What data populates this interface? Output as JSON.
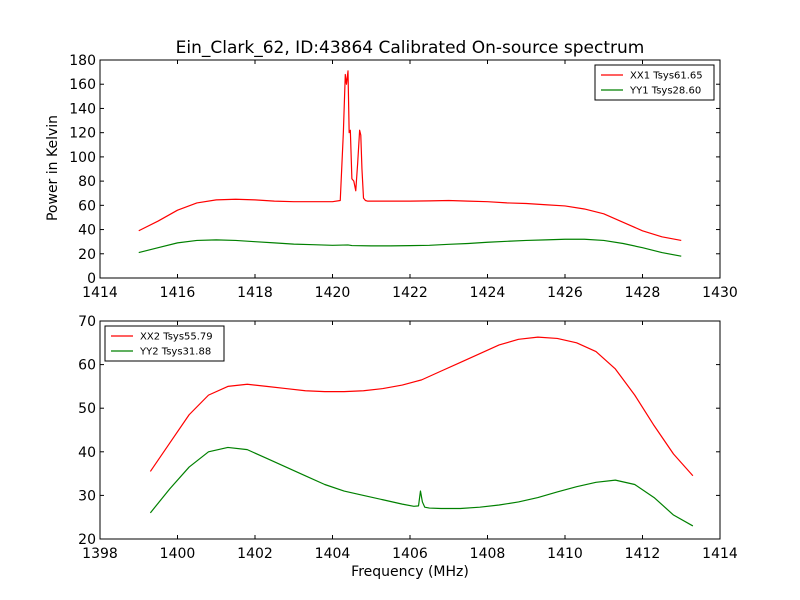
{
  "chart_data": [
    {
      "type": "line",
      "title": "Ein_Clark_62, ID:43864 Calibrated On-source spectrum",
      "xlabel": "",
      "ylabel": "Power in Kelvin",
      "xlim": [
        1414,
        1430
      ],
      "ylim": [
        0,
        180
      ],
      "xticks": [
        "1414",
        "1416",
        "1418",
        "1420",
        "1422",
        "1424",
        "1426",
        "1428",
        "1430"
      ],
      "yticks": [
        "0",
        "20",
        "40",
        "60",
        "80",
        "100",
        "120",
        "140",
        "160",
        "180"
      ],
      "legend_position": "top-right",
      "grid": false,
      "series": [
        {
          "name": "XX1 Tsys61.65",
          "color": "#ff0000",
          "x": [
            1415.0,
            1415.5,
            1416.0,
            1416.5,
            1417.0,
            1417.5,
            1418.0,
            1418.5,
            1419.0,
            1419.5,
            1420.0,
            1420.2,
            1420.28,
            1420.33,
            1420.36,
            1420.4,
            1420.43,
            1420.46,
            1420.5,
            1420.55,
            1420.6,
            1420.65,
            1420.7,
            1420.73,
            1420.76,
            1420.8,
            1420.85,
            1420.9,
            1421.0,
            1421.5,
            1422.0,
            1422.5,
            1423.0,
            1423.5,
            1424.0,
            1424.5,
            1425.0,
            1425.5,
            1426.0,
            1426.5,
            1427.0,
            1427.5,
            1428.0,
            1428.5,
            1429.0
          ],
          "y": [
            39,
            47,
            56,
            62,
            64.5,
            65,
            64.5,
            63.5,
            63,
            63,
            63,
            64,
            120,
            168,
            160,
            171,
            120,
            122,
            82,
            80,
            72,
            95,
            122,
            118,
            90,
            66,
            64,
            63.5,
            63.5,
            63.5,
            63.5,
            63.7,
            64,
            63.5,
            63,
            62,
            61.5,
            60.5,
            59.5,
            57,
            53,
            46,
            39,
            34,
            31
          ]
        },
        {
          "name": "YY1 Tsys28.60",
          "color": "#008000",
          "x": [
            1415.0,
            1415.5,
            1416.0,
            1416.5,
            1417.0,
            1417.5,
            1418.0,
            1418.5,
            1419.0,
            1419.5,
            1420.0,
            1420.4,
            1420.5,
            1421.0,
            1421.5,
            1422.0,
            1422.5,
            1423.0,
            1423.5,
            1424.0,
            1424.5,
            1425.0,
            1425.5,
            1426.0,
            1426.5,
            1427.0,
            1427.5,
            1428.0,
            1428.5,
            1429.0
          ],
          "y": [
            21,
            25,
            29,
            31,
            31.5,
            31,
            30,
            29,
            28,
            27.5,
            27,
            27.3,
            26.8,
            26.5,
            26.5,
            26.7,
            27,
            27.8,
            28.5,
            29.5,
            30.3,
            31,
            31.5,
            32,
            32,
            31,
            28.5,
            25,
            21,
            18
          ]
        }
      ]
    },
    {
      "type": "line",
      "title": "",
      "xlabel": "Frequency (MHz)",
      "ylabel": "",
      "xlim": [
        1398,
        1414
      ],
      "ylim": [
        20,
        70
      ],
      "xticks": [
        "1398",
        "1400",
        "1402",
        "1404",
        "1406",
        "1408",
        "1410",
        "1412",
        "1414"
      ],
      "yticks": [
        "20",
        "30",
        "40",
        "50",
        "60",
        "70"
      ],
      "legend_position": "top-left",
      "grid": false,
      "series": [
        {
          "name": "XX2 Tsys55.79",
          "color": "#ff0000",
          "x": [
            1399.3,
            1399.8,
            1400.3,
            1400.8,
            1401.3,
            1401.8,
            1402.3,
            1402.8,
            1403.3,
            1403.8,
            1404.3,
            1404.8,
            1405.3,
            1405.8,
            1406.3,
            1406.8,
            1407.3,
            1407.8,
            1408.3,
            1408.8,
            1409.3,
            1409.8,
            1410.3,
            1410.8,
            1411.3,
            1411.8,
            1412.3,
            1412.8,
            1413.3
          ],
          "y": [
            35.5,
            42,
            48.5,
            53,
            55,
            55.5,
            55,
            54.5,
            54,
            53.8,
            53.8,
            54,
            54.5,
            55.3,
            56.5,
            58.5,
            60.5,
            62.5,
            64.5,
            65.8,
            66.3,
            66,
            65,
            63,
            59,
            53,
            46,
            39.5,
            34.5
          ]
        },
        {
          "name": "YY2 Tsys31.88",
          "color": "#008000",
          "x": [
            1399.3,
            1399.8,
            1400.3,
            1400.8,
            1401.3,
            1401.8,
            1402.3,
            1402.8,
            1403.3,
            1403.8,
            1404.3,
            1404.8,
            1405.3,
            1405.8,
            1406.1,
            1406.22,
            1406.27,
            1406.32,
            1406.38,
            1406.5,
            1406.8,
            1407.3,
            1407.8,
            1408.3,
            1408.8,
            1409.3,
            1409.8,
            1410.3,
            1410.8,
            1411.3,
            1411.8,
            1412.3,
            1412.8,
            1413.3
          ],
          "y": [
            26,
            31.5,
            36.5,
            40,
            41,
            40.5,
            38.5,
            36.5,
            34.5,
            32.5,
            31,
            30,
            29,
            28,
            27.5,
            27.6,
            31,
            28.5,
            27.3,
            27.1,
            27,
            27,
            27.3,
            27.8,
            28.5,
            29.5,
            30.8,
            32,
            33,
            33.5,
            32.5,
            29.5,
            25.5,
            23
          ]
        }
      ]
    }
  ]
}
